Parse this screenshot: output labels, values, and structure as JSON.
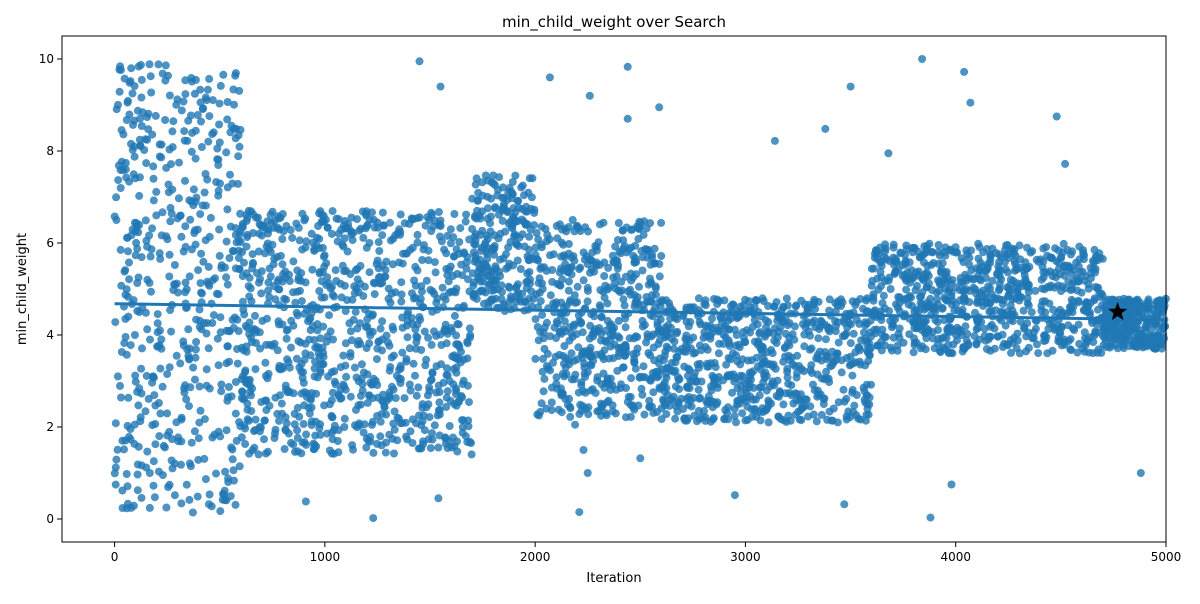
{
  "chart_data": {
    "type": "scatter",
    "title": "min_child_weight over Search",
    "xlabel": "Iteration",
    "ylabel": "min_child_weight",
    "xlim": [
      -250,
      5000
    ],
    "ylim": [
      -0.5,
      10.5
    ],
    "xticks": [
      0,
      1000,
      2000,
      3000,
      4000,
      5000
    ],
    "yticks": [
      0,
      2,
      4,
      6,
      8,
      10
    ],
    "x_tick_labels": [
      "0",
      "1000",
      "2000",
      "3000",
      "4000",
      "5000"
    ],
    "y_tick_labels": [
      "0",
      "2",
      "4",
      "6",
      "8",
      "10"
    ],
    "grid": false,
    "colors": {
      "points": "#1f77b4",
      "trend": "#1f77b4",
      "best": "#000000"
    },
    "trend_line": {
      "x": [
        0,
        5000
      ],
      "y": [
        4.68,
        4.33
      ]
    },
    "best_point": {
      "x": 4770,
      "y": 4.5
    },
    "point_density_regions": [
      {
        "x": [
          0,
          300
        ],
        "y": [
          0.2,
          10.0
        ],
        "n": 260
      },
      {
        "x": [
          300,
          600
        ],
        "y": [
          0.1,
          9.7
        ],
        "n": 260
      },
      {
        "x": [
          600,
          1700
        ],
        "y": [
          1.4,
          6.7
        ],
        "n": 900
      },
      {
        "x": [
          1700,
          2000
        ],
        "y": [
          4.5,
          7.5
        ],
        "n": 240
      },
      {
        "x": [
          2000,
          2600
        ],
        "y": [
          2.2,
          6.5
        ],
        "n": 520
      },
      {
        "x": [
          2600,
          3600
        ],
        "y": [
          2.1,
          4.8
        ],
        "n": 680
      },
      {
        "x": [
          3600,
          4700
        ],
        "y": [
          3.6,
          6.0
        ],
        "n": 760
      },
      {
        "x": [
          4700,
          5000
        ],
        "y": [
          3.7,
          4.8
        ],
        "n": 260
      }
    ],
    "outliers": [
      {
        "x": 1450,
        "y": 9.95
      },
      {
        "x": 1550,
        "y": 9.4
      },
      {
        "x": 2070,
        "y": 9.6
      },
      {
        "x": 2260,
        "y": 9.2
      },
      {
        "x": 2440,
        "y": 9.83
      },
      {
        "x": 2440,
        "y": 8.7
      },
      {
        "x": 2590,
        "y": 8.95
      },
      {
        "x": 3140,
        "y": 8.22
      },
      {
        "x": 3380,
        "y": 8.48
      },
      {
        "x": 3500,
        "y": 9.4
      },
      {
        "x": 3680,
        "y": 7.95
      },
      {
        "x": 3840,
        "y": 10.0
      },
      {
        "x": 4040,
        "y": 9.72
      },
      {
        "x": 4070,
        "y": 9.05
      },
      {
        "x": 4480,
        "y": 8.75
      },
      {
        "x": 4520,
        "y": 7.72
      },
      {
        "x": 910,
        "y": 0.38
      },
      {
        "x": 1230,
        "y": 0.02
      },
      {
        "x": 1540,
        "y": 0.45
      },
      {
        "x": 2210,
        "y": 0.15
      },
      {
        "x": 2250,
        "y": 1.0
      },
      {
        "x": 2950,
        "y": 0.52
      },
      {
        "x": 3470,
        "y": 0.32
      },
      {
        "x": 3880,
        "y": 0.03
      },
      {
        "x": 3980,
        "y": 0.75
      },
      {
        "x": 4880,
        "y": 1.0
      },
      {
        "x": 2230,
        "y": 1.5
      },
      {
        "x": 2190,
        "y": 2.05
      },
      {
        "x": 2500,
        "y": 1.32
      },
      {
        "x": 3110,
        "y": 2.1
      }
    ]
  }
}
